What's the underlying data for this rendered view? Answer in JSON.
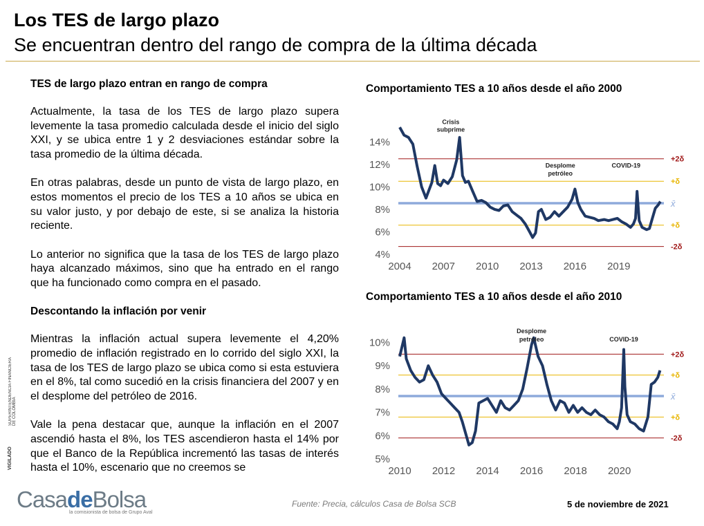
{
  "header": {
    "title": "Los TES de largo plazo",
    "subtitle": "Se encuentran dentro del rango de compra de la última década"
  },
  "body": {
    "heading1": "TES de largo plazo entran en rango de compra",
    "p1": "Actualmente, la tasa de los TES de largo plazo supera levemente la tasa promedio calculada desde el inicio del siglo XXI, y se ubica entre 1 y 2 desviaciones estándar sobre la tasa promedio de la última década.",
    "p2": "En otras palabras, desde un punto de vista de largo plazo, en estos momentos el precio de los TES a 10 años se ubica en su valor justo, y por debajo de este, si se analiza la historia reciente.",
    "p3": "Lo anterior no significa que la tasa de los TES de largo plazo haya alcanzado máximos, sino que ha entrado en el rango que ha funcionado como compra en el pasado.",
    "heading2": "Descontando la inflación por venir",
    "p4": "Mientras la inflación actual supera levemente el 4,20% promedio de inflación registrado en lo corrido del siglo XXI, la tasa de los TES de largo plazo se ubica como si esta estuviera en el 8%, tal como sucedió en la crisis financiera del 2007 y en el desplome del petróleo de 2016.",
    "p5": "Vale la pena destacar que, aunque la inflación en el 2007 ascendió hasta el 8%, los TES ascendieron hasta el 14% por que el Banco de la República incrementó las tasas de interés hasta el 10%, escenario que no creemos se"
  },
  "side_labels": {
    "vigilado": "VIGILADO",
    "superintendencia": "SUPERINTENDENCIA FINANCIERA DE COLOMBIA"
  },
  "footer": {
    "logo_a": "Casa",
    "logo_b": "de",
    "logo_c": "Bolsa",
    "logo_sub": "la comisionista de bolsa de Grupo Aval",
    "source": "Fuente: Precia, cálculos Casa de Bolsa SCB",
    "date": "5 de noviembre de 2021"
  },
  "colors": {
    "series": "#1f3864",
    "mean": "#8eaadb",
    "sd1": "#e8b500",
    "sd2": "#a01818",
    "rule": "#c9a84a"
  },
  "chart_data": [
    {
      "type": "line",
      "title": "Comportamiento TES a 10 años desde el año 2000",
      "xlim": [
        2004.0,
        2021.9
      ],
      "ylim": [
        4,
        15.8
      ],
      "x_ticks": [
        2004,
        2007,
        2010,
        2013,
        2016,
        2019
      ],
      "y_ticks": [
        4,
        6,
        8,
        10,
        12,
        14
      ],
      "y_tick_labels": [
        "4%",
        "6%",
        "8%",
        "10%",
        "12%",
        "14%"
      ],
      "bands": [
        {
          "label": "+2δ",
          "value": 12.5,
          "kind": "sd2"
        },
        {
          "label": "+δ",
          "value": 10.5,
          "kind": "sd1"
        },
        {
          "label": "x̄",
          "value": 8.55,
          "kind": "mean"
        },
        {
          "label": "+δ",
          "value": 6.6,
          "kind": "sd1"
        },
        {
          "label": "-2δ",
          "value": 4.7,
          "kind": "sd2"
        }
      ],
      "annotations": [
        {
          "text": "Crisis",
          "x": 2007.5,
          "y": 15.6
        },
        {
          "text": "subprime",
          "x": 2007.5,
          "y": 14.9
        },
        {
          "text": "Desplome",
          "x": 2015.0,
          "y": 11.7
        },
        {
          "text": "petróleo",
          "x": 2015.0,
          "y": 11.0
        },
        {
          "text": "COVID-19",
          "x": 2019.5,
          "y": 11.7
        }
      ],
      "series": [
        {
          "x": [
            2004.0,
            2004.3,
            2004.6,
            2004.9,
            2005.2,
            2005.5,
            2005.8,
            2006.0,
            2006.2,
            2006.4,
            2006.6,
            2006.8,
            2007.0,
            2007.3,
            2007.6,
            2007.9,
            2008.1,
            2008.3,
            2008.5,
            2008.7,
            2009.0,
            2009.3,
            2009.6,
            2009.9,
            2010.2,
            2010.5,
            2010.8,
            2011.1,
            2011.4,
            2011.7,
            2012.0,
            2012.3,
            2012.6,
            2012.9,
            2013.1,
            2013.3,
            2013.5,
            2013.7,
            2014.0,
            2014.3,
            2014.6,
            2014.9,
            2015.2,
            2015.5,
            2015.8,
            2016.0,
            2016.2,
            2016.4,
            2016.7,
            2017.0,
            2017.3,
            2017.6,
            2018.0,
            2018.3,
            2018.6,
            2018.9,
            2019.2,
            2019.5,
            2019.8,
            2020.0,
            2020.15,
            2020.25,
            2020.4,
            2020.6,
            2020.9,
            2021.1,
            2021.3,
            2021.5,
            2021.7,
            2021.85
          ],
          "values": [
            15.3,
            14.6,
            14.4,
            13.8,
            11.8,
            10.0,
            9.0,
            9.7,
            10.4,
            11.9,
            10.3,
            10.1,
            10.6,
            10.3,
            10.9,
            12.4,
            14.4,
            11.0,
            10.4,
            10.5,
            9.6,
            8.7,
            8.8,
            8.6,
            8.2,
            8.0,
            7.9,
            8.3,
            8.4,
            7.8,
            7.5,
            7.2,
            6.7,
            6.0,
            5.5,
            5.9,
            7.8,
            8.0,
            7.1,
            7.3,
            7.8,
            7.4,
            7.8,
            8.2,
            8.9,
            9.8,
            8.6,
            8.0,
            7.4,
            7.3,
            7.2,
            7.0,
            7.1,
            7.0,
            7.1,
            7.2,
            6.9,
            6.7,
            6.4,
            6.7,
            7.2,
            9.6,
            7.0,
            6.4,
            6.2,
            6.3,
            7.2,
            8.1,
            8.4,
            8.7
          ]
        }
      ]
    },
    {
      "type": "line",
      "title": "Comportamiento TES a 10 años desde el año 2010",
      "xlim": [
        2010.0,
        2021.9
      ],
      "ylim": [
        5,
        10.4
      ],
      "x_ticks": [
        2010,
        2012,
        2014,
        2016,
        2018,
        2020
      ],
      "y_ticks": [
        5,
        6,
        7,
        8,
        9,
        10
      ],
      "y_tick_labels": [
        "5%",
        "6%",
        "7%",
        "8%",
        "9%",
        "10%"
      ],
      "bands": [
        {
          "label": "+2δ",
          "value": 9.5,
          "kind": "sd2"
        },
        {
          "label": "+δ",
          "value": 8.6,
          "kind": "sd1"
        },
        {
          "label": "x̄",
          "value": 7.7,
          "kind": "mean"
        },
        {
          "label": "+δ",
          "value": 6.8,
          "kind": "sd1"
        },
        {
          "label": "-2δ",
          "value": 5.9,
          "kind": "sd2"
        }
      ],
      "annotations": [
        {
          "text": "Desplome",
          "x": 2016.0,
          "y": 10.4
        },
        {
          "text": "petróleo",
          "x": 2016.0,
          "y": 10.05
        },
        {
          "text": "COVID-19",
          "x": 2020.2,
          "y": 10.05
        }
      ],
      "series": [
        {
          "x": [
            2010.0,
            2010.1,
            2010.2,
            2010.3,
            2010.5,
            2010.7,
            2010.9,
            2011.1,
            2011.3,
            2011.5,
            2011.7,
            2011.9,
            2012.1,
            2012.3,
            2012.5,
            2012.7,
            2012.85,
            2013.0,
            2013.15,
            2013.3,
            2013.45,
            2013.6,
            2013.8,
            2014.0,
            2014.2,
            2014.4,
            2014.6,
            2014.8,
            2015.0,
            2015.2,
            2015.4,
            2015.6,
            2015.8,
            2016.0,
            2016.1,
            2016.3,
            2016.5,
            2016.7,
            2016.9,
            2017.1,
            2017.3,
            2017.5,
            2017.7,
            2017.9,
            2018.1,
            2018.3,
            2018.5,
            2018.7,
            2018.9,
            2019.1,
            2019.3,
            2019.5,
            2019.7,
            2019.9,
            2020.0,
            2020.1,
            2020.2,
            2020.25,
            2020.35,
            2020.5,
            2020.7,
            2020.9,
            2021.1,
            2021.3,
            2021.45,
            2021.6,
            2021.75,
            2021.85
          ],
          "values": [
            9.4,
            9.8,
            10.2,
            9.3,
            8.8,
            8.5,
            8.3,
            8.4,
            9.0,
            8.6,
            8.3,
            7.8,
            7.6,
            7.4,
            7.2,
            7.0,
            6.6,
            6.1,
            5.6,
            5.7,
            6.2,
            7.4,
            7.5,
            7.6,
            7.3,
            7.0,
            7.5,
            7.2,
            7.1,
            7.3,
            7.5,
            8.0,
            8.9,
            9.9,
            10.2,
            9.4,
            9.0,
            8.2,
            7.5,
            7.1,
            7.5,
            7.4,
            7.0,
            7.3,
            7.0,
            7.2,
            7.0,
            6.9,
            7.1,
            6.9,
            6.8,
            6.6,
            6.5,
            6.3,
            6.6,
            7.2,
            9.7,
            8.1,
            6.9,
            6.6,
            6.5,
            6.3,
            6.2,
            6.8,
            8.2,
            8.3,
            8.5,
            8.8
          ]
        }
      ]
    }
  ]
}
